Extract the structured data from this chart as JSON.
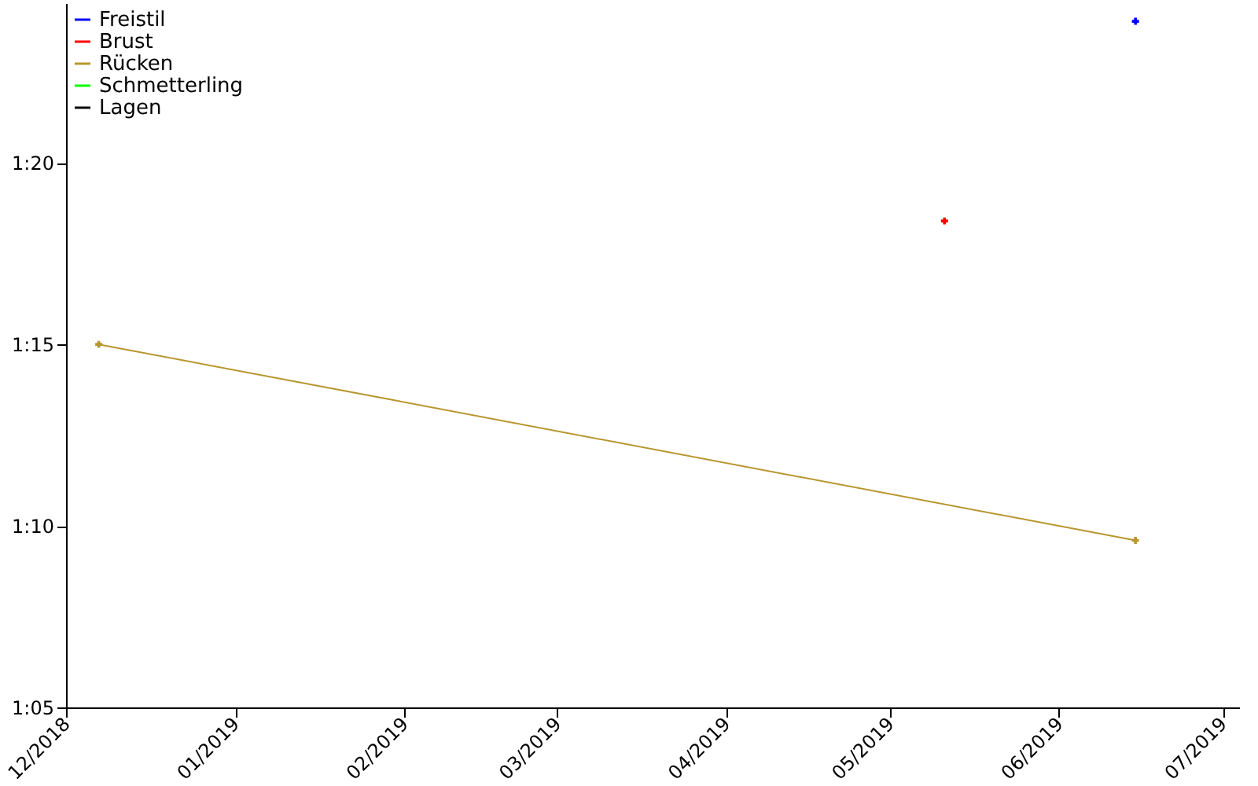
{
  "chart_data": {
    "type": "line",
    "xlim": [
      "2018-12-01",
      "2019-07-04"
    ],
    "xticks": [
      {
        "value": "2018-12",
        "label": "12/2018"
      },
      {
        "value": "2019-01",
        "label": "01/2019"
      },
      {
        "value": "2019-02",
        "label": "02/2019"
      },
      {
        "value": "2019-03",
        "label": "03/2019"
      },
      {
        "value": "2019-04",
        "label": "04/2019"
      },
      {
        "value": "2019-05",
        "label": "05/2019"
      },
      {
        "value": "2019-06",
        "label": "06/2019"
      },
      {
        "value": "2019-07",
        "label": "07/2019"
      }
    ],
    "ylim": [
      65,
      84.4
    ],
    "yticks": [
      {
        "value": 65,
        "label": "1:05"
      },
      {
        "value": 70,
        "label": "1:10"
      },
      {
        "value": 75,
        "label": "1:15"
      },
      {
        "value": 80,
        "label": "1:20"
      }
    ],
    "series": [
      {
        "name": "Freistil",
        "color": "#0000ff",
        "x": [
          "2019-06-15"
        ],
        "values": [
          83.9
        ]
      },
      {
        "name": "Brust",
        "color": "#ff0000",
        "x": [
          "2019-05-11"
        ],
        "values": [
          78.4
        ]
      },
      {
        "name": "Rücken",
        "color": "#b8962e",
        "x": [
          "2018-12-07",
          "2019-06-15"
        ],
        "values": [
          75,
          69.6
        ]
      },
      {
        "name": "Schmetterling",
        "color": "#00ff00"
      },
      {
        "name": "Lagen",
        "color": "#000000"
      }
    ],
    "grid": false,
    "legend": "top left",
    "marker": "cross",
    "line_style": "solid"
  }
}
